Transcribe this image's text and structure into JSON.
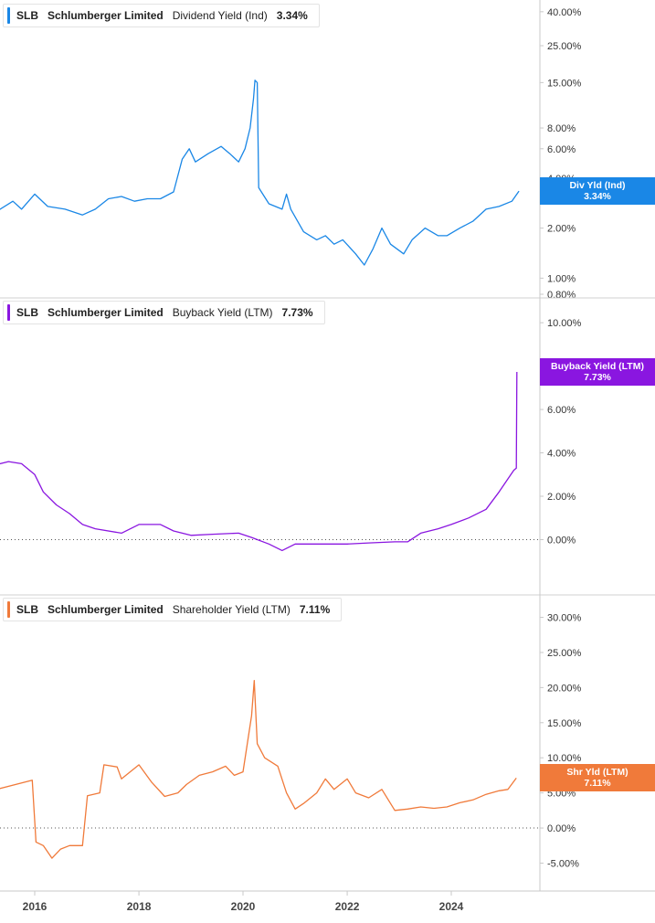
{
  "panels": [
    {
      "ticker": "SLB",
      "company": "Schlumberger Limited",
      "metric": "Dividend Yield (Ind)",
      "value": "3.34%",
      "color": "#1a87e6",
      "label_lines": [
        "Div Yld (Ind)",
        "3.34%"
      ],
      "scale": "log",
      "ylim": [
        0.78,
        42
      ],
      "ticks": [
        {
          "v": 40,
          "t": "40.00%"
        },
        {
          "v": 25,
          "t": "25.00%"
        },
        {
          "v": 15,
          "t": "15.00%"
        },
        {
          "v": 8,
          "t": "8.00%"
        },
        {
          "v": 6,
          "t": "6.00%"
        },
        {
          "v": 4,
          "t": "4.00%"
        },
        {
          "v": 2,
          "t": "2.00%"
        },
        {
          "v": 1,
          "t": "1.00%"
        },
        {
          "v": 0.8,
          "t": "0.80%"
        }
      ],
      "zero_line": false,
      "series": [
        [
          "2015-01-01",
          2.2
        ],
        [
          "2015-04-01",
          2.5
        ],
        [
          "2015-08-01",
          2.9
        ],
        [
          "2015-10-01",
          2.6
        ],
        [
          "2016-01-01",
          3.2
        ],
        [
          "2016-04-01",
          2.7
        ],
        [
          "2016-08-01",
          2.6
        ],
        [
          "2016-12-01",
          2.4
        ],
        [
          "2017-03-01",
          2.6
        ],
        [
          "2017-06-01",
          3.0
        ],
        [
          "2017-09-01",
          3.1
        ],
        [
          "2017-12-01",
          2.9
        ],
        [
          "2018-03-01",
          3.0
        ],
        [
          "2018-06-01",
          3.0
        ],
        [
          "2018-09-01",
          3.3
        ],
        [
          "2018-11-01",
          5.2
        ],
        [
          "2018-12-20",
          6.0
        ],
        [
          "2019-02-01",
          5.0
        ],
        [
          "2019-05-01",
          5.6
        ],
        [
          "2019-08-01",
          6.2
        ],
        [
          "2019-10-01",
          5.6
        ],
        [
          "2019-12-01",
          5.0
        ],
        [
          "2020-01-15",
          6.0
        ],
        [
          "2020-02-20",
          8.0
        ],
        [
          "2020-03-15",
          12.0
        ],
        [
          "2020-03-25",
          15.5
        ],
        [
          "2020-04-10",
          15.0
        ],
        [
          "2020-04-20",
          3.5
        ],
        [
          "2020-07-01",
          2.8
        ],
        [
          "2020-10-01",
          2.6
        ],
        [
          "2020-11-01",
          3.2
        ],
        [
          "2020-12-01",
          2.6
        ],
        [
          "2021-03-01",
          1.9
        ],
        [
          "2021-06-01",
          1.7
        ],
        [
          "2021-08-01",
          1.8
        ],
        [
          "2021-10-01",
          1.6
        ],
        [
          "2021-12-01",
          1.7
        ],
        [
          "2022-03-01",
          1.4
        ],
        [
          "2022-05-01",
          1.2
        ],
        [
          "2022-07-01",
          1.5
        ],
        [
          "2022-09-01",
          2.0
        ],
        [
          "2022-11-01",
          1.6
        ],
        [
          "2023-02-01",
          1.4
        ],
        [
          "2023-04-01",
          1.7
        ],
        [
          "2023-07-01",
          2.0
        ],
        [
          "2023-10-01",
          1.8
        ],
        [
          "2023-12-01",
          1.8
        ],
        [
          "2024-03-01",
          2.0
        ],
        [
          "2024-06-01",
          2.2
        ],
        [
          "2024-09-01",
          2.6
        ],
        [
          "2024-12-01",
          2.7
        ],
        [
          "2025-03-01",
          2.9
        ],
        [
          "2025-04-20",
          3.34
        ]
      ]
    },
    {
      "ticker": "SLB",
      "company": "Schlumberger Limited",
      "metric": "Buyback Yield (LTM)",
      "value": "7.73%",
      "color": "#8a16e0",
      "label_lines": [
        "Buyback Yield (LTM)",
        "7.73%"
      ],
      "scale": "linear",
      "ylim": [
        -1.2,
        10.3
      ],
      "ticks": [
        {
          "v": 10,
          "t": "10.00%"
        },
        {
          "v": 8,
          "t": "8.00%"
        },
        {
          "v": 6,
          "t": "6.00%"
        },
        {
          "v": 4,
          "t": "4.00%"
        },
        {
          "v": 2,
          "t": "2.00%"
        },
        {
          "v": 0,
          "t": "0.00%"
        }
      ],
      "zero_line": true,
      "series": [
        [
          "2015-01-01",
          3.3
        ],
        [
          "2015-07-01",
          3.6
        ],
        [
          "2015-10-01",
          3.5
        ],
        [
          "2016-01-01",
          3.0
        ],
        [
          "2016-03-01",
          2.2
        ],
        [
          "2016-06-01",
          1.6
        ],
        [
          "2016-09-01",
          1.2
        ],
        [
          "2016-12-01",
          0.7
        ],
        [
          "2017-03-01",
          0.5
        ],
        [
          "2017-09-01",
          0.3
        ],
        [
          "2018-01-01",
          0.7
        ],
        [
          "2018-06-01",
          0.7
        ],
        [
          "2018-09-01",
          0.4
        ],
        [
          "2019-01-01",
          0.2
        ],
        [
          "2019-06-01",
          0.25
        ],
        [
          "2019-12-01",
          0.3
        ],
        [
          "2020-03-01",
          0.1
        ],
        [
          "2020-07-01",
          -0.2
        ],
        [
          "2020-10-01",
          -0.5
        ],
        [
          "2021-01-01",
          -0.2
        ],
        [
          "2021-06-01",
          -0.2
        ],
        [
          "2022-01-01",
          -0.2
        ],
        [
          "2022-06-01",
          -0.15
        ],
        [
          "2022-12-01",
          -0.1
        ],
        [
          "2023-03-01",
          -0.1
        ],
        [
          "2023-06-01",
          0.3
        ],
        [
          "2023-10-01",
          0.5
        ],
        [
          "2024-01-01",
          0.7
        ],
        [
          "2024-05-01",
          1.0
        ],
        [
          "2024-09-01",
          1.4
        ],
        [
          "2024-12-01",
          2.2
        ],
        [
          "2025-02-01",
          2.8
        ],
        [
          "2025-03-15",
          3.2
        ],
        [
          "2025-04-01",
          3.3
        ],
        [
          "2025-04-05",
          7.73
        ]
      ]
    },
    {
      "ticker": "SLB",
      "company": "Schlumberger Limited",
      "metric": "Shareholder Yield (LTM)",
      "value": "7.11%",
      "color": "#f07a3a",
      "label_lines": [
        "Shr Yld (LTM)",
        "7.11%"
      ],
      "scale": "linear",
      "ylim": [
        -6.5,
        31.5
      ],
      "ticks": [
        {
          "v": 30,
          "t": "30.00%"
        },
        {
          "v": 25,
          "t": "25.00%"
        },
        {
          "v": 20,
          "t": "20.00%"
        },
        {
          "v": 15,
          "t": "15.00%"
        },
        {
          "v": 10,
          "t": "10.00%"
        },
        {
          "v": 5,
          "t": "5.00%"
        },
        {
          "v": 0,
          "t": "0.00%"
        },
        {
          "v": -5,
          "t": "-5.00%"
        }
      ],
      "zero_line": true,
      "series": [
        [
          "2015-01-01",
          5.0
        ],
        [
          "2015-12-15",
          6.8
        ],
        [
          "2016-01-10",
          -2.0
        ],
        [
          "2016-03-01",
          -2.5
        ],
        [
          "2016-05-01",
          -4.3
        ],
        [
          "2016-07-01",
          -3.0
        ],
        [
          "2016-09-01",
          -2.5
        ],
        [
          "2016-12-01",
          -2.5
        ],
        [
          "2017-01-05",
          4.6
        ],
        [
          "2017-04-01",
          5.0
        ],
        [
          "2017-05-01",
          9.0
        ],
        [
          "2017-08-01",
          8.7
        ],
        [
          "2017-09-01",
          7.0
        ],
        [
          "2018-01-01",
          9.0
        ],
        [
          "2018-04-01",
          6.5
        ],
        [
          "2018-07-01",
          4.5
        ],
        [
          "2018-10-01",
          5.0
        ],
        [
          "2018-12-01",
          6.2
        ],
        [
          "2019-03-01",
          7.5
        ],
        [
          "2019-06-01",
          8.0
        ],
        [
          "2019-09-01",
          8.8
        ],
        [
          "2019-11-01",
          7.5
        ],
        [
          "2020-01-01",
          8.0
        ],
        [
          "2020-03-01",
          16.0
        ],
        [
          "2020-03-20",
          21.0
        ],
        [
          "2020-04-10",
          12.0
        ],
        [
          "2020-06-01",
          10.0
        ],
        [
          "2020-09-01",
          8.8
        ],
        [
          "2020-11-01",
          5.0
        ],
        [
          "2021-01-01",
          2.7
        ],
        [
          "2021-03-01",
          3.5
        ],
        [
          "2021-06-01",
          5.0
        ],
        [
          "2021-08-01",
          7.0
        ],
        [
          "2021-10-01",
          5.5
        ],
        [
          "2022-01-01",
          7.0
        ],
        [
          "2022-03-01",
          5.0
        ],
        [
          "2022-06-01",
          4.3
        ],
        [
          "2022-09-01",
          5.5
        ],
        [
          "2022-12-01",
          2.5
        ],
        [
          "2023-03-01",
          2.7
        ],
        [
          "2023-06-01",
          3.0
        ],
        [
          "2023-09-01",
          2.8
        ],
        [
          "2023-12-01",
          3.0
        ],
        [
          "2024-03-01",
          3.6
        ],
        [
          "2024-06-01",
          4.0
        ],
        [
          "2024-09-01",
          4.8
        ],
        [
          "2024-12-01",
          5.3
        ],
        [
          "2025-02-01",
          5.5
        ],
        [
          "2025-04-01",
          7.11
        ]
      ]
    }
  ],
  "x_axis": {
    "ticks": [
      {
        "d": "2016-01-01",
        "t": "2016"
      },
      {
        "d": "2018-01-01",
        "t": "2018"
      },
      {
        "d": "2020-01-01",
        "t": "2020"
      },
      {
        "d": "2022-01-01",
        "t": "2022"
      },
      {
        "d": "2024-01-01",
        "t": "2024"
      }
    ]
  }
}
